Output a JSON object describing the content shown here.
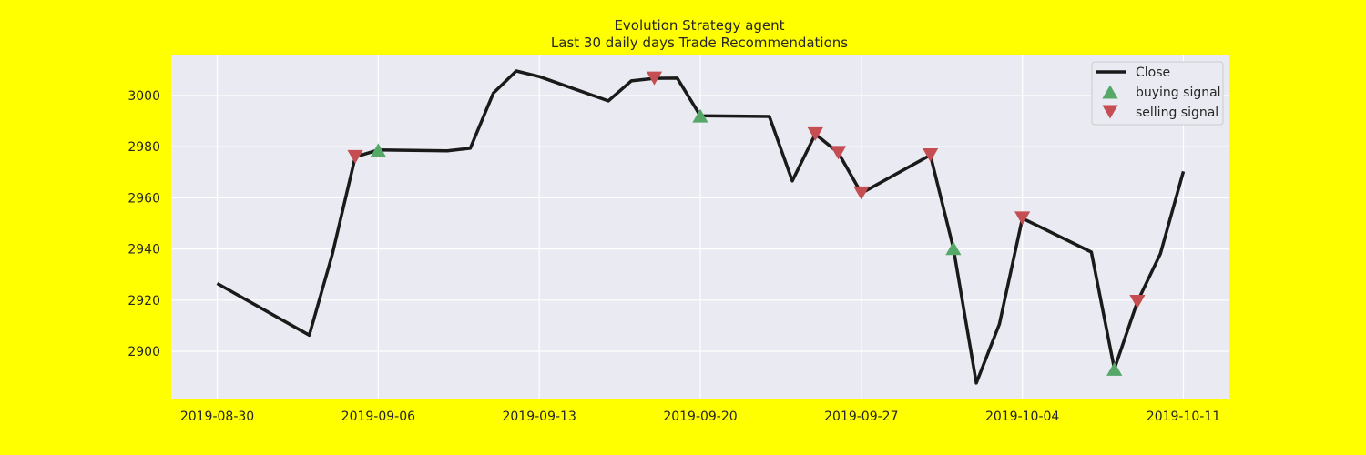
{
  "chart_data": {
    "type": "line",
    "title": "Evolution Strategy agent",
    "subtitle": "Last 30 daily days Trade Recommendations",
    "xlabel": "",
    "ylabel": "",
    "x": [
      "2019-08-30",
      "2019-09-03",
      "2019-09-04",
      "2019-09-05",
      "2019-09-06",
      "2019-09-09",
      "2019-09-10",
      "2019-09-11",
      "2019-09-12",
      "2019-09-13",
      "2019-09-16",
      "2019-09-17",
      "2019-09-18",
      "2019-09-19",
      "2019-09-20",
      "2019-09-23",
      "2019-09-24",
      "2019-09-25",
      "2019-09-26",
      "2019-09-27",
      "2019-09-30",
      "2019-10-01",
      "2019-10-02",
      "2019-10-03",
      "2019-10-04",
      "2019-10-07",
      "2019-10-08",
      "2019-10-09",
      "2019-10-10",
      "2019-10-11"
    ],
    "series": [
      {
        "name": "Close",
        "color": "#1a1a1a",
        "values": [
          2926.5,
          2906.3,
          2937.8,
          2976.0,
          2978.7,
          2978.4,
          2979.4,
          3000.9,
          3009.6,
          3007.4,
          2997.9,
          3005.7,
          3006.7,
          3006.8,
          2992.1,
          2991.8,
          2966.6,
          2984.9,
          2977.6,
          2961.8,
          2976.7,
          2940.3,
          2887.6,
          2910.6,
          2952.0,
          2938.8,
          2893.1,
          2919.4,
          2938.1,
          2970.3
        ]
      }
    ],
    "signals": [
      {
        "name": "buying signal",
        "color": "#55a868",
        "marker": "triangle-up",
        "points": [
          {
            "x": "2019-09-06",
            "y": 2978.7
          },
          {
            "x": "2019-09-20",
            "y": 2992.1
          },
          {
            "x": "2019-10-01",
            "y": 2940.3
          },
          {
            "x": "2019-10-08",
            "y": 2893.1
          }
        ]
      },
      {
        "name": "selling signal",
        "color": "#c44e52",
        "marker": "triangle-down",
        "points": [
          {
            "x": "2019-09-05",
            "y": 2976.0
          },
          {
            "x": "2019-09-18",
            "y": 3006.7
          },
          {
            "x": "2019-09-25",
            "y": 2984.9
          },
          {
            "x": "2019-09-26",
            "y": 2977.6
          },
          {
            "x": "2019-09-27",
            "y": 2961.8
          },
          {
            "x": "2019-09-30",
            "y": 2976.7
          },
          {
            "x": "2019-10-04",
            "y": 2952.0
          },
          {
            "x": "2019-10-09",
            "y": 2919.4
          }
        ]
      }
    ],
    "xticks": [
      "2019-08-30",
      "2019-09-06",
      "2019-09-13",
      "2019-09-20",
      "2019-09-27",
      "2019-10-04",
      "2019-10-11"
    ],
    "yticks": [
      2900,
      2920,
      2940,
      2960,
      2980,
      3000
    ],
    "xlim": [
      "2019-08-28",
      "2019-10-13"
    ],
    "ylim": [
      2881.5,
      3016.0
    ],
    "grid": true,
    "legend": "top-right",
    "colors": {
      "page_background": "#ffff00",
      "plot_background": "#eaeaf2",
      "grid": "#ffffff"
    }
  }
}
